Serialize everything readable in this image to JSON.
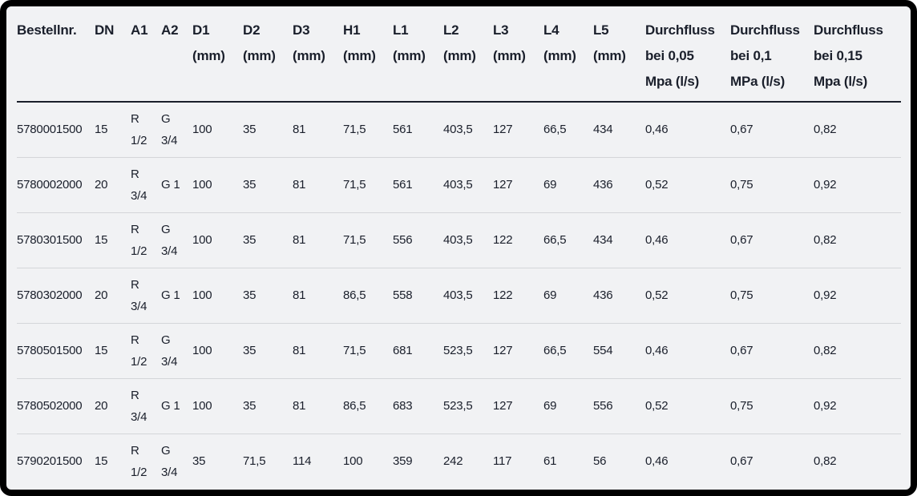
{
  "colors": {
    "frame": "#000000",
    "background": "#f1f2f4",
    "text": "#1a1f2b",
    "header_rule": "#1a1f2b",
    "row_divider": "#d4d6d9"
  },
  "table": {
    "columns": [
      {
        "lines": [
          "Bestellnr."
        ]
      },
      {
        "lines": [
          "DN"
        ]
      },
      {
        "lines": [
          "A1"
        ]
      },
      {
        "lines": [
          "A2"
        ]
      },
      {
        "lines": [
          "D1",
          "(mm)"
        ]
      },
      {
        "lines": [
          "D2",
          "(mm)"
        ]
      },
      {
        "lines": [
          "D3",
          "(mm)"
        ]
      },
      {
        "lines": [
          "H1",
          "(mm)"
        ]
      },
      {
        "lines": [
          "L1",
          "(mm)"
        ]
      },
      {
        "lines": [
          "L2",
          "(mm)"
        ]
      },
      {
        "lines": [
          "L3",
          "(mm)"
        ]
      },
      {
        "lines": [
          "L4",
          "(mm)"
        ]
      },
      {
        "lines": [
          "L5",
          "(mm)"
        ]
      },
      {
        "lines": [
          "Durchfluss",
          "bei 0,05",
          "Mpa (l/s)"
        ]
      },
      {
        "lines": [
          "Durchfluss",
          "bei 0,1",
          "MPa (l/s)"
        ]
      },
      {
        "lines": [
          "Durchfluss",
          "bei 0,15",
          "Mpa (l/s)"
        ]
      }
    ],
    "rows": [
      [
        "5780001500",
        "15",
        "R 1/2",
        "G 3/4",
        "100",
        "35",
        "81",
        "71,5",
        "561",
        "403,5",
        "127",
        "66,5",
        "434",
        "0,46",
        "0,67",
        "0,82"
      ],
      [
        "5780002000",
        "20",
        "R 3/4",
        "G 1",
        "100",
        "35",
        "81",
        "71,5",
        "561",
        "403,5",
        "127",
        "69",
        "436",
        "0,52",
        "0,75",
        "0,92"
      ],
      [
        "5780301500",
        "15",
        "R 1/2",
        "G 3/4",
        "100",
        "35",
        "81",
        "71,5",
        "556",
        "403,5",
        "122",
        "66,5",
        "434",
        "0,46",
        "0,67",
        "0,82"
      ],
      [
        "5780302000",
        "20",
        "R 3/4",
        "G 1",
        "100",
        "35",
        "81",
        "86,5",
        "558",
        "403,5",
        "122",
        "69",
        "436",
        "0,52",
        "0,75",
        "0,92"
      ],
      [
        "5780501500",
        "15",
        "R 1/2",
        "G 3/4",
        "100",
        "35",
        "81",
        "71,5",
        "681",
        "523,5",
        "127",
        "66,5",
        "554",
        "0,46",
        "0,67",
        "0,82"
      ],
      [
        "5780502000",
        "20",
        "R 3/4",
        "G 1",
        "100",
        "35",
        "81",
        "86,5",
        "683",
        "523,5",
        "127",
        "69",
        "556",
        "0,52",
        "0,75",
        "0,92"
      ],
      [
        "5790201500",
        "15",
        "R 1/2",
        "G 3/4",
        "35",
        "71,5",
        "114",
        "100",
        "359",
        "242",
        "117",
        "61",
        "56",
        "0,46",
        "0,67",
        "0,82"
      ]
    ]
  }
}
